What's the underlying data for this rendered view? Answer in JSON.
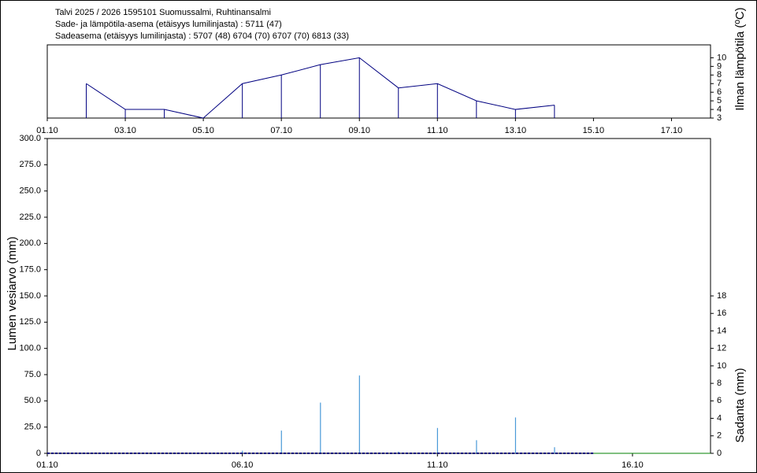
{
  "header": {
    "lines": [
      "Talvi 2025 / 2026 1595101 Suomussalmi, Ruhtinansalmi",
      "Sade- ja lämpötila-asema (etäisyys lumilinjasta) :   5711 (47)",
      "Sadeasema (etäisyys lumilinjasta) :   5707 (48) 6704 (70) 6707 (70) 6813 (33)"
    ]
  },
  "chart_data": [
    {
      "type": "line",
      "y2label": "Ilman lämpötila (ºC)",
      "x": [
        2,
        3,
        4,
        5,
        6,
        7,
        8,
        9,
        10,
        11,
        12,
        13,
        14
      ],
      "series": [
        {
          "color": "#000080",
          "axis": "y2",
          "values": [
            7,
            4,
            4,
            3,
            7,
            8,
            9.2,
            10,
            6.5,
            7,
            5,
            4,
            4.5
          ]
        }
      ],
      "xlim": [
        1,
        18
      ],
      "xticks": [
        {
          "value": 1,
          "label": "01.10"
        },
        {
          "value": 3,
          "label": "03.10"
        },
        {
          "value": 5,
          "label": "05.10"
        },
        {
          "value": 7,
          "label": "07.10"
        },
        {
          "value": 9,
          "label": "09.10"
        },
        {
          "value": 11,
          "label": "11.10"
        },
        {
          "value": 13,
          "label": "13.10"
        },
        {
          "value": 15,
          "label": "15.10"
        },
        {
          "value": 17,
          "label": "17.10"
        }
      ],
      "y2lim": [
        3,
        11.5
      ],
      "y2ticks": [
        3,
        4,
        5,
        6,
        7,
        8,
        9,
        10
      ]
    },
    {
      "type": "combo",
      "ylabel": "Lumen vesiarvo (mm)",
      "y2label": "Sadanta (mm)",
      "series": [
        {
          "type": "bar",
          "color": "#4a9ad8",
          "axis": "y2",
          "x": [
            6,
            7,
            8,
            9,
            10,
            11,
            12,
            13,
            14
          ],
          "values": [
            0.3,
            2.6,
            5.8,
            8.9,
            0.2,
            2.9,
            1.5,
            4.1,
            0.7
          ]
        },
        {
          "type": "line",
          "color": "#000080",
          "dash": true,
          "x": [
            1,
            15
          ],
          "values": [
            0,
            0
          ]
        },
        {
          "type": "line",
          "color": "#008000",
          "x": [
            15,
            18
          ],
          "values": [
            0,
            0
          ]
        }
      ],
      "xlim": [
        1,
        18
      ],
      "xticks": [
        {
          "value": 1,
          "label": "01.10"
        },
        {
          "value": 6,
          "label": "06.10"
        },
        {
          "value": 11,
          "label": "11.10"
        },
        {
          "value": 16,
          "label": "16.10"
        }
      ],
      "ylim": [
        0,
        300
      ],
      "yticks": [
        0,
        {
          "value": 25,
          "label": "25.0"
        },
        {
          "value": 50,
          "label": "50.0"
        },
        {
          "value": 75,
          "label": "75.0"
        },
        {
          "value": 100,
          "label": "100.0"
        },
        {
          "value": 125,
          "label": "125.0"
        },
        {
          "value": 150,
          "label": "150.0"
        },
        {
          "value": 175,
          "label": "175.0"
        },
        {
          "value": 200,
          "label": "200.0"
        },
        {
          "value": 225,
          "label": "225.0"
        },
        {
          "value": 250,
          "label": "250.0"
        },
        {
          "value": 275,
          "label": "275.0"
        },
        {
          "value": 300,
          "label": "300.0"
        }
      ],
      "y2lim": [
        0,
        36
      ],
      "y2ticks": [
        0,
        2,
        4,
        6,
        8,
        10,
        12,
        14,
        16,
        18
      ]
    }
  ]
}
